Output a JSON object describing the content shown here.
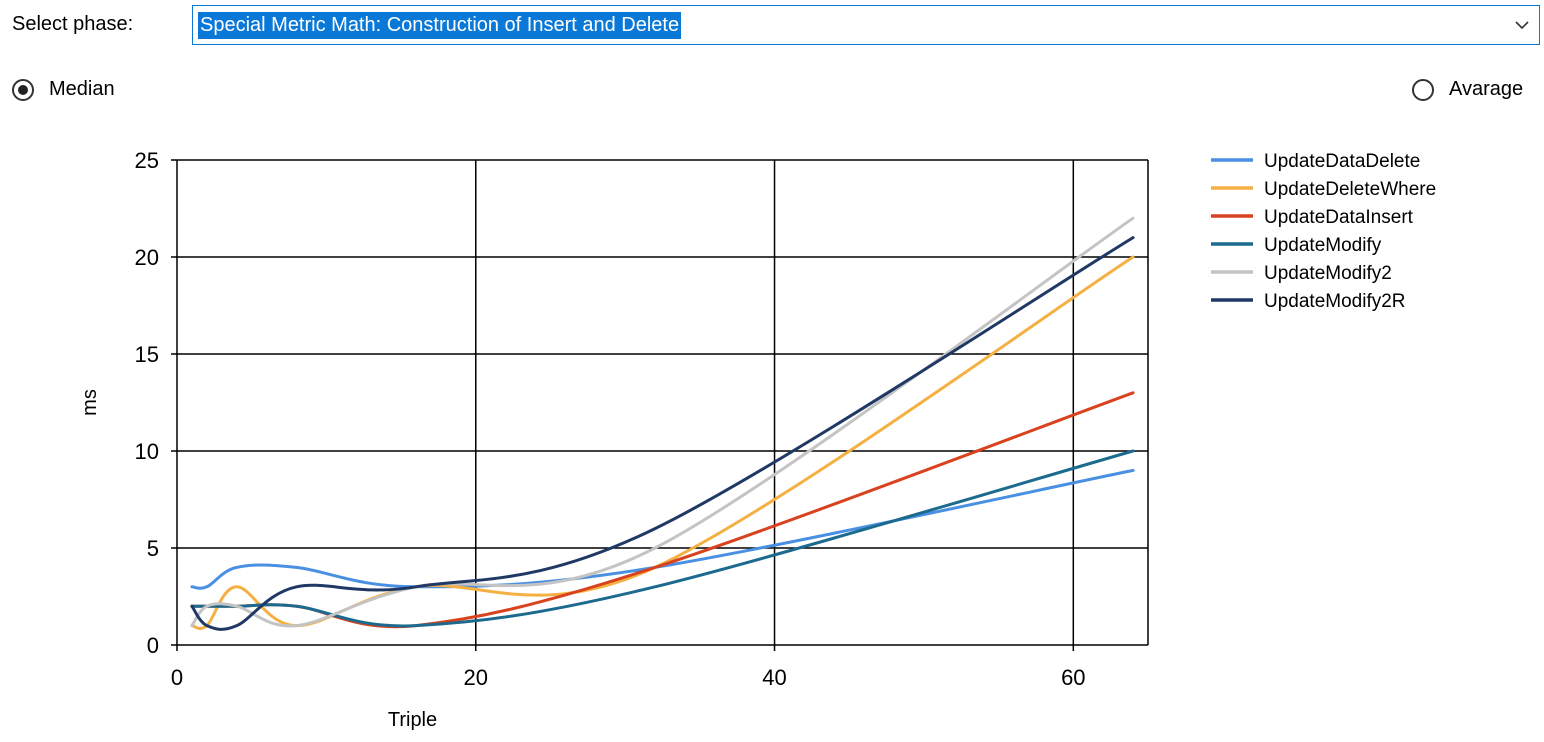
{
  "phase": {
    "label": "Select phase:",
    "selected": "Special Metric Math: Construction of Insert and Delete"
  },
  "mode": {
    "median_label": "Median",
    "average_label": "Avarage",
    "selected": "median"
  },
  "chart_data": {
    "type": "line",
    "title": "",
    "xlabel": "Triple",
    "ylabel": "ms",
    "xlim": [
      0,
      65
    ],
    "ylim": [
      0,
      25
    ],
    "xticks": [
      0,
      20,
      40,
      60
    ],
    "yticks": [
      0,
      5,
      10,
      15,
      20,
      25
    ],
    "grid": true,
    "legend_position": "right",
    "series": [
      {
        "name": "UpdateDataDelete",
        "color": "#4a90e2",
        "x": [
          1,
          2,
          4,
          8,
          16,
          32,
          64
        ],
        "y": [
          3,
          3,
          4,
          4,
          3,
          4,
          9
        ]
      },
      {
        "name": "UpdateDeleteWhere",
        "color": "#f5b042",
        "x": [
          1,
          2,
          4,
          8,
          16,
          32,
          64
        ],
        "y": [
          1,
          1,
          3,
          1,
          3,
          4,
          20
        ]
      },
      {
        "name": "UpdateDataInsert",
        "color": "#d9421e",
        "x": [
          1,
          2,
          4,
          8,
          16,
          32,
          64
        ],
        "y": [
          2,
          2,
          2,
          2,
          1,
          4,
          13
        ]
      },
      {
        "name": "UpdateModify",
        "color": "#1c6a8e",
        "x": [
          1,
          2,
          4,
          8,
          16,
          32,
          64
        ],
        "y": [
          2,
          2,
          2,
          2,
          1,
          3,
          10
        ]
      },
      {
        "name": "UpdateModify2",
        "color": "#c4c4c4",
        "x": [
          1,
          2,
          4,
          8,
          16,
          32,
          64
        ],
        "y": [
          1,
          2,
          2,
          1,
          3,
          5,
          22
        ]
      },
      {
        "name": "UpdateModify2R",
        "color": "#1f3864",
        "x": [
          1,
          2,
          4,
          8,
          16,
          32,
          64
        ],
        "y": [
          2,
          1,
          1,
          3,
          3,
          6,
          21
        ]
      }
    ]
  }
}
